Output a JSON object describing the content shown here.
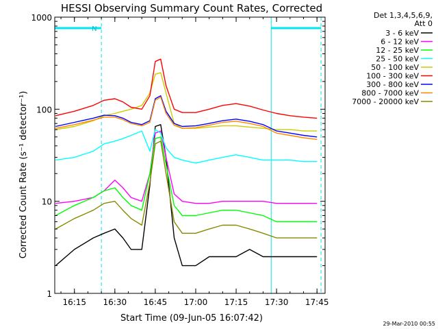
{
  "chart_data": {
    "type": "line",
    "title": "HESSI Observing Summary Count Rates, Corrected",
    "xlabel": "Start Time (09-Jun-05 16:07:42)",
    "ylabel": "Corrected Count Rate (s⁻¹ detector⁻¹)",
    "x_scale": "time",
    "y_scale": "log",
    "xlim": [
      "16:07:42",
      "17:48:00"
    ],
    "ylim": [
      1,
      1000
    ],
    "x_ticks": [
      "16:15",
      "16:30",
      "16:45",
      "17:00",
      "17:15",
      "17:30",
      "17:45"
    ],
    "y_ticks": [
      "1",
      "10",
      "100",
      "1000"
    ],
    "legend_header": [
      "Det 1,3,4,5,6,9,",
      "Att 0"
    ],
    "legend_position": "outside right",
    "timestamp": "29-Mar-2010 00:55",
    "annotations": [
      {
        "label": "N",
        "type": "night",
        "from": "16:07:42",
        "to": "16:25:00"
      },
      {
        "type": "night",
        "from": "17:28:00",
        "to": "17:46:30"
      }
    ],
    "series": [
      {
        "name": "3 - 6 keV",
        "color": "#000000",
        "x": [
          "16:08",
          "16:15",
          "16:22",
          "16:26",
          "16:30",
          "16:33",
          "16:36",
          "16:40",
          "16:43",
          "16:45",
          "16:47",
          "16:49",
          "16:52",
          "16:55",
          "17:00",
          "17:05",
          "17:10",
          "17:15",
          "17:20",
          "17:25",
          "17:30",
          "17:35",
          "17:40",
          "17:45"
        ],
        "y": [
          2,
          3,
          4,
          4.5,
          5,
          4,
          3,
          3,
          15,
          65,
          68,
          30,
          4,
          2,
          2,
          2.5,
          2.5,
          2.5,
          3,
          2.5,
          2.5,
          2.5,
          2.5,
          2.5
        ]
      },
      {
        "name": "6 - 12 keV",
        "color": "#ff00ff",
        "x": [
          "16:08",
          "16:15",
          "16:22",
          "16:26",
          "16:30",
          "16:33",
          "16:36",
          "16:40",
          "16:43",
          "16:45",
          "16:47",
          "16:49",
          "16:52",
          "16:55",
          "17:00",
          "17:05",
          "17:10",
          "17:15",
          "17:20",
          "17:25",
          "17:30",
          "17:35",
          "17:40",
          "17:45"
        ],
        "y": [
          9.5,
          10,
          11,
          13,
          17,
          14,
          11,
          10,
          20,
          55,
          58,
          30,
          12,
          10,
          9.5,
          9.5,
          10,
          10,
          10,
          10,
          9.5,
          9.5,
          9.5,
          9.5
        ]
      },
      {
        "name": "12 - 25 keV",
        "color": "#00ff00",
        "x": [
          "16:08",
          "16:15",
          "16:22",
          "16:26",
          "16:30",
          "16:33",
          "16:36",
          "16:40",
          "16:43",
          "16:45",
          "16:47",
          "16:49",
          "16:52",
          "16:55",
          "17:00",
          "17:05",
          "17:10",
          "17:15",
          "17:20",
          "17:25",
          "17:30",
          "17:35",
          "17:40",
          "17:45"
        ],
        "y": [
          7,
          9,
          11,
          13,
          14,
          11,
          9,
          8,
          20,
          48,
          50,
          25,
          9,
          7,
          7,
          7.5,
          8,
          8,
          7.5,
          7,
          6,
          6,
          6,
          6
        ]
      },
      {
        "name": "25 - 50 keV",
        "color": "#00ffff",
        "x": [
          "16:08",
          "16:15",
          "16:22",
          "16:26",
          "16:30",
          "16:33",
          "16:36",
          "16:40",
          "16:43",
          "16:45",
          "16:47",
          "16:49",
          "16:52",
          "16:55",
          "17:00",
          "17:05",
          "17:10",
          "17:15",
          "17:20",
          "17:25",
          "17:30",
          "17:35",
          "17:40",
          "17:45"
        ],
        "y": [
          28,
          30,
          35,
          42,
          45,
          48,
          52,
          58,
          35,
          60,
          55,
          38,
          30,
          28,
          26,
          28,
          30,
          32,
          30,
          28,
          28,
          28,
          27,
          27
        ]
      },
      {
        "name": "50 - 100 keV",
        "color": "#cccc00",
        "x": [
          "16:08",
          "16:15",
          "16:22",
          "16:26",
          "16:30",
          "16:33",
          "16:36",
          "16:40",
          "16:43",
          "16:45",
          "16:47",
          "16:49",
          "16:52",
          "16:55",
          "17:00",
          "17:05",
          "17:10",
          "17:15",
          "17:20",
          "17:25",
          "17:30",
          "17:35",
          "17:40",
          "17:45"
        ],
        "y": [
          60,
          65,
          75,
          85,
          90,
          95,
          100,
          110,
          150,
          240,
          250,
          150,
          70,
          62,
          62,
          64,
          66,
          66,
          64,
          62,
          60,
          60,
          58,
          58
        ]
      },
      {
        "name": "100 - 300 keV",
        "color": "#ff0000",
        "x": [
          "16:08",
          "16:15",
          "16:22",
          "16:26",
          "16:30",
          "16:33",
          "16:36",
          "16:40",
          "16:43",
          "16:45",
          "16:47",
          "16:49",
          "16:52",
          "16:55",
          "17:00",
          "17:05",
          "17:10",
          "17:15",
          "17:20",
          "17:25",
          "17:30",
          "17:35",
          "17:40",
          "17:45"
        ],
        "y": [
          85,
          95,
          110,
          125,
          130,
          120,
          105,
          100,
          140,
          330,
          350,
          180,
          100,
          92,
          92,
          100,
          110,
          115,
          108,
          98,
          90,
          85,
          82,
          80
        ]
      },
      {
        "name": "300 - 800 keV",
        "color": "#0000ff",
        "x": [
          "16:08",
          "16:15",
          "16:22",
          "16:26",
          "16:30",
          "16:33",
          "16:36",
          "16:40",
          "16:43",
          "16:45",
          "16:47",
          "16:49",
          "16:52",
          "16:55",
          "17:00",
          "17:05",
          "17:10",
          "17:15",
          "17:20",
          "17:25",
          "17:30",
          "17:35",
          "17:40",
          "17:45"
        ],
        "y": [
          65,
          72,
          80,
          86,
          85,
          80,
          72,
          68,
          75,
          130,
          140,
          95,
          70,
          65,
          66,
          70,
          75,
          78,
          74,
          68,
          58,
          55,
          52,
          50
        ]
      },
      {
        "name": "800 - 7000 keV",
        "color": "#ff8800",
        "x": [
          "16:08",
          "16:15",
          "16:22",
          "16:26",
          "16:30",
          "16:33",
          "16:36",
          "16:40",
          "16:43",
          "16:45",
          "16:47",
          "16:49",
          "16:52",
          "16:55",
          "17:00",
          "17:05",
          "17:10",
          "17:15",
          "17:20",
          "17:25",
          "17:30",
          "17:35",
          "17:40",
          "17:45"
        ],
        "y": [
          62,
          68,
          76,
          82,
          82,
          77,
          70,
          66,
          72,
          125,
          135,
          90,
          67,
          62,
          63,
          67,
          72,
          74,
          70,
          65,
          55,
          52,
          49,
          47
        ]
      },
      {
        "name": "7000 - 20000 keV",
        "color": "#888800",
        "x": [
          "16:08",
          "16:15",
          "16:22",
          "16:26",
          "16:30",
          "16:33",
          "16:36",
          "16:40",
          "16:43",
          "16:45",
          "16:47",
          "16:49",
          "16:52",
          "16:55",
          "17:00",
          "17:05",
          "17:10",
          "17:15",
          "17:20",
          "17:25",
          "17:30",
          "17:35",
          "17:40",
          "17:45"
        ],
        "y": [
          5,
          6.5,
          8,
          9.5,
          10,
          8,
          6.5,
          5.5,
          16,
          42,
          45,
          20,
          6,
          4.5,
          4.5,
          5,
          5.5,
          5.5,
          5,
          4.5,
          4,
          4,
          4,
          4
        ]
      }
    ]
  }
}
